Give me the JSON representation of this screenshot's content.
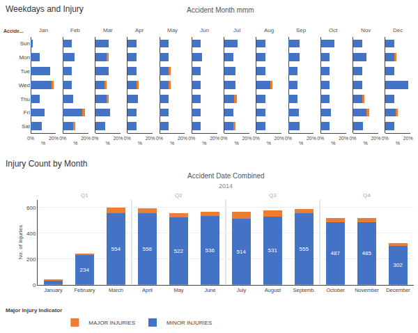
{
  "chart_data": [
    {
      "type": "bar",
      "orientation": "horizontal",
      "stacked": true,
      "title": "Jan",
      "categories": [
        "Sun",
        "Mon",
        "Tue",
        "Wed",
        "Thu",
        "Fri",
        "Sat"
      ],
      "series": [
        {
          "name": "MINOR INJURIES",
          "color": "#4472c4",
          "values": [
            2,
            8,
            17,
            18,
            8,
            12,
            10
          ]
        },
        {
          "name": "MAJOR INJURIES",
          "color": "#ed7d31",
          "values": [
            0,
            0,
            0,
            2,
            0,
            0,
            0
          ]
        }
      ],
      "xlim": [
        0,
        22
      ],
      "xticks": [
        {
          "value": 0,
          "label": "0%"
        },
        {
          "value": 20,
          "label": "20%"
        }
      ],
      "xlabel": "%",
      "annotations": [
        {
          "text": "Weekdays and Injury"
        },
        {
          "text": "Accident Month mmm"
        },
        {
          "text": "Accide..."
        }
      ]
    },
    {
      "type": "bar",
      "orientation": "horizontal",
      "stacked": true,
      "title": "Feb",
      "categories": [
        "Sun",
        "Mon",
        "Tue",
        "Wed",
        "Thu",
        "Fri",
        "Sat"
      ],
      "series": [
        {
          "name": "MINOR INJURIES",
          "color": "#4472c4",
          "values": [
            8,
            10,
            8,
            8,
            9,
            17,
            9
          ]
        },
        {
          "name": "MAJOR INJURIES",
          "color": "#ed7d31",
          "values": [
            0,
            0,
            0,
            0,
            0,
            2,
            2
          ]
        }
      ],
      "xlim": [
        0,
        22
      ],
      "xticks": [
        {
          "value": 0,
          "label": "0%"
        },
        {
          "value": 20,
          "label": "20%"
        }
      ],
      "xlabel": "%",
      "tick_labels": "x"
    },
    {
      "type": "bar",
      "orientation": "horizontal",
      "stacked": true,
      "title": "Mar",
      "categories": [
        "Sun",
        "Mon",
        "Tue",
        "Wed",
        "Thu",
        "Fri",
        "Sat"
      ],
      "series": [
        {
          "name": "MINOR INJURIES",
          "color": "#4472c4",
          "values": [
            12,
            10,
            12,
            8,
            10,
            13,
            9
          ]
        },
        {
          "name": "MAJOR INJURIES",
          "color": "#ed7d31",
          "values": [
            0,
            2,
            0,
            2,
            2,
            0,
            0
          ]
        }
      ],
      "xlim": [
        0,
        22
      ],
      "xticks": [
        {
          "value": 0,
          "label": "0%"
        },
        {
          "value": 20,
          "label": "20%"
        }
      ],
      "xlabel": "%",
      "tick_labels": "x"
    },
    {
      "type": "bar",
      "orientation": "horizontal",
      "stacked": true,
      "title": "Apr",
      "categories": [
        "Sun",
        "Mon",
        "Tue",
        "Wed",
        "Thu",
        "Fri",
        "Sat"
      ],
      "series": [
        {
          "name": "MINOR INJURIES",
          "color": "#4472c4",
          "values": [
            8,
            8,
            8,
            8,
            9,
            8,
            8
          ]
        },
        {
          "name": "MAJOR INJURIES",
          "color": "#ed7d31",
          "values": [
            0,
            0,
            0,
            2,
            0,
            0,
            0
          ]
        }
      ],
      "xlim": [
        0,
        22
      ],
      "xticks": [
        {
          "value": 0,
          "label": "0%"
        },
        {
          "value": 20,
          "label": "20%"
        }
      ],
      "xlabel": "%",
      "tick_labels": "x"
    },
    {
      "type": "bar",
      "orientation": "horizontal",
      "stacked": true,
      "title": "May",
      "categories": [
        "Sun",
        "Mon",
        "Tue",
        "Wed",
        "Thu",
        "Fri",
        "Sat"
      ],
      "series": [
        {
          "name": "MINOR INJURIES",
          "color": "#4472c4",
          "values": [
            8,
            8,
            8,
            8,
            8,
            8,
            8
          ]
        },
        {
          "name": "MAJOR INJURIES",
          "color": "#ed7d31",
          "values": [
            0,
            0,
            2,
            2,
            0,
            0,
            0
          ]
        }
      ],
      "xlim": [
        0,
        22
      ],
      "xticks": [
        {
          "value": 0,
          "label": "0%"
        },
        {
          "value": 20,
          "label": "20%"
        }
      ],
      "xlabel": "%",
      "tick_labels": "x"
    },
    {
      "type": "bar",
      "orientation": "horizontal",
      "stacked": true,
      "title": "Jun",
      "categories": [
        "Sun",
        "Mon",
        "Tue",
        "Wed",
        "Thu",
        "Fri",
        "Sat"
      ],
      "series": [
        {
          "name": "MINOR INJURIES",
          "color": "#4472c4",
          "values": [
            8,
            9,
            8,
            8,
            8,
            8,
            8
          ]
        },
        {
          "name": "MAJOR INJURIES",
          "color": "#ed7d31",
          "values": [
            0,
            0,
            0,
            0,
            0,
            0,
            0
          ]
        }
      ],
      "xlim": [
        0,
        22
      ],
      "xticks": [
        {
          "value": 0,
          "label": "0%"
        },
        {
          "value": 20,
          "label": "20%"
        }
      ],
      "xlabel": "%",
      "tick_labels": "x"
    },
    {
      "type": "bar",
      "orientation": "horizontal",
      "stacked": true,
      "title": "Jul",
      "categories": [
        "Sun",
        "Mon",
        "Tue",
        "Wed",
        "Thu",
        "Fri",
        "Sat"
      ],
      "series": [
        {
          "name": "MINOR INJURIES",
          "color": "#4472c4",
          "values": [
            12,
            8,
            10,
            10,
            9,
            8,
            8
          ]
        },
        {
          "name": "MAJOR INJURIES",
          "color": "#ed7d31",
          "values": [
            0,
            0,
            0,
            0,
            2,
            0,
            2
          ]
        }
      ],
      "xlim": [
        0,
        22
      ],
      "xticks": [
        {
          "value": 0,
          "label": "0%"
        },
        {
          "value": 20,
          "label": "20%"
        }
      ],
      "xlabel": "%",
      "tick_labels": "x"
    },
    {
      "type": "bar",
      "orientation": "horizontal",
      "stacked": true,
      "title": "Aug",
      "categories": [
        "Sun",
        "Mon",
        "Tue",
        "Wed",
        "Thu",
        "Fri",
        "Sat"
      ],
      "series": [
        {
          "name": "MINOR INJURIES",
          "color": "#4472c4",
          "values": [
            8,
            8,
            8,
            12,
            8,
            8,
            8
          ]
        },
        {
          "name": "MAJOR INJURIES",
          "color": "#ed7d31",
          "values": [
            0,
            0,
            0,
            2,
            0,
            0,
            0
          ]
        }
      ],
      "xlim": [
        0,
        22
      ],
      "xticks": [
        {
          "value": 0,
          "label": "0%"
        },
        {
          "value": 20,
          "label": "20%"
        }
      ],
      "xlabel": "%",
      "tick_labels": "x"
    },
    {
      "type": "bar",
      "orientation": "horizontal",
      "stacked": true,
      "title": "Sep",
      "categories": [
        "Sun",
        "Mon",
        "Tue",
        "Wed",
        "Thu",
        "Fri",
        "Sat"
      ],
      "series": [
        {
          "name": "MINOR INJURIES",
          "color": "#4472c4",
          "values": [
            10,
            10,
            8,
            8,
            8,
            9,
            10
          ]
        },
        {
          "name": "MAJOR INJURIES",
          "color": "#ed7d31",
          "values": [
            0,
            0,
            0,
            0,
            0,
            0,
            0
          ]
        }
      ],
      "xlim": [
        0,
        22
      ],
      "xticks": [
        {
          "value": 0,
          "label": "0%"
        },
        {
          "value": 20,
          "label": "20%"
        }
      ],
      "xlabel": "%",
      "tick_labels": "x"
    },
    {
      "type": "bar",
      "orientation": "horizontal",
      "stacked": true,
      "title": "Oct",
      "categories": [
        "Sun",
        "Mon",
        "Tue",
        "Wed",
        "Thu",
        "Fri",
        "Sat"
      ],
      "series": [
        {
          "name": "MINOR INJURIES",
          "color": "#4472c4",
          "values": [
            12,
            8,
            8,
            8,
            8,
            9,
            8
          ]
        },
        {
          "name": "MAJOR INJURIES",
          "color": "#ed7d31",
          "values": [
            0,
            0,
            0,
            0,
            0,
            0,
            0
          ]
        }
      ],
      "xlim": [
        0,
        22
      ],
      "xticks": [
        {
          "value": 0,
          "label": "0%"
        },
        {
          "value": 20,
          "label": "20%"
        }
      ],
      "xlabel": "%",
      "tick_labels": "x"
    },
    {
      "type": "bar",
      "orientation": "horizontal",
      "stacked": true,
      "title": "Nov",
      "categories": [
        "Sun",
        "Mon",
        "Tue",
        "Wed",
        "Thu",
        "Fri",
        "Sat"
      ],
      "series": [
        {
          "name": "MINOR INJURIES",
          "color": "#4472c4",
          "values": [
            8,
            12,
            8,
            8,
            8,
            12,
            9
          ]
        },
        {
          "name": "MAJOR INJURIES",
          "color": "#ed7d31",
          "values": [
            0,
            0,
            0,
            0,
            2,
            2,
            0
          ]
        }
      ],
      "xlim": [
        0,
        22
      ],
      "xticks": [
        {
          "value": 0,
          "label": "0%"
        },
        {
          "value": 20,
          "label": "20%"
        }
      ],
      "xlabel": "%",
      "tick_labels": "x"
    },
    {
      "type": "bar",
      "orientation": "horizontal",
      "stacked": true,
      "title": "Dec",
      "categories": [
        "Sun",
        "Mon",
        "Tue",
        "Wed",
        "Thu",
        "Fri",
        "Sat"
      ],
      "series": [
        {
          "name": "MINOR INJURIES",
          "color": "#4472c4",
          "values": [
            8,
            8,
            8,
            20,
            8,
            9,
            8
          ]
        },
        {
          "name": "MAJOR INJURIES",
          "color": "#ed7d31",
          "values": [
            0,
            2,
            0,
            0,
            0,
            2,
            0
          ]
        }
      ],
      "xlim": [
        0,
        22
      ],
      "xticks": [
        {
          "value": 0,
          "label": "0%"
        },
        {
          "value": 20,
          "label": "20%"
        }
      ],
      "xlabel": "%",
      "tick_labels": "x"
    },
    {
      "type": "bar",
      "stacked": true,
      "title": "Accident Date Combined",
      "subtitle": "2014",
      "ylabel": "No. of Injuries",
      "categories": [
        "January",
        "February",
        "March",
        "April",
        "May",
        "June",
        "July",
        "August",
        "Septemb.",
        "October",
        "November",
        "December"
      ],
      "series": [
        {
          "name": "MINOR INJURIES",
          "color": "#4472c4",
          "values": [
            35,
            234,
            554,
            556,
            522,
            536,
            514,
            531,
            555,
            487,
            485,
            302
          ],
          "value_labels": [
            null,
            "234",
            "554",
            "556",
            "522",
            "536",
            "514",
            "531",
            "555",
            "487",
            "485",
            "302"
          ]
        },
        {
          "name": "MAJOR INJURIES",
          "color": "#ed7d31",
          "values": [
            5,
            10,
            45,
            40,
            35,
            30,
            55,
            45,
            35,
            30,
            35,
            20
          ]
        }
      ],
      "data_labels": true,
      "ylim": [
        0,
        660
      ],
      "yticks": [
        0,
        200,
        400,
        600
      ],
      "grid": true,
      "legend": "lower left",
      "annotations": [
        {
          "text": "Injury Count by Month"
        },
        {
          "text": "Major Injury Indicator"
        },
        {
          "text": "Q1",
          "x": 1
        },
        {
          "text": "Q2",
          "x": 4
        },
        {
          "text": "Q3",
          "x": 7
        },
        {
          "text": "Q4",
          "x": 10
        }
      ]
    }
  ]
}
